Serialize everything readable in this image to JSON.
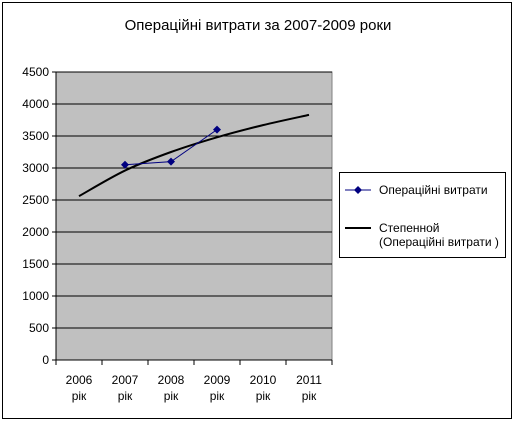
{
  "chart_data": {
    "type": "line",
    "title": "Операційні витрати за 2007-2009 роки",
    "categories": [
      "2006 рік",
      "2007 рік",
      "2008 рік",
      "2009 рік",
      "2010 рік",
      "2011 рік"
    ],
    "category_lines": [
      [
        "2006",
        "рік"
      ],
      [
        "2007",
        "рік"
      ],
      [
        "2008",
        "рік"
      ],
      [
        "2009",
        "рік"
      ],
      [
        "2010",
        "рік"
      ],
      [
        "2011",
        "рік"
      ]
    ],
    "series": [
      {
        "name": "Операційні витрати",
        "values": [
          null,
          3050,
          3100,
          3600,
          null,
          null
        ],
        "color": "#000080",
        "marker": "diamond"
      }
    ],
    "trendline": {
      "name": "Степенной (Операційні витрати )",
      "name_lines": [
        "Степенной",
        "(Операційні витрати )"
      ],
      "type": "power",
      "values": [
        2560,
        2960,
        3250,
        3480,
        3670,
        3830
      ],
      "color": "#000000"
    },
    "ylim": [
      0,
      4500
    ],
    "yticks": [
      "0",
      "500",
      "1000",
      "1500",
      "2000",
      "2500",
      "3000",
      "3500",
      "4000",
      "4500"
    ],
    "grid": true,
    "plot_background": "#c0c0c0",
    "legend_position": "right"
  }
}
